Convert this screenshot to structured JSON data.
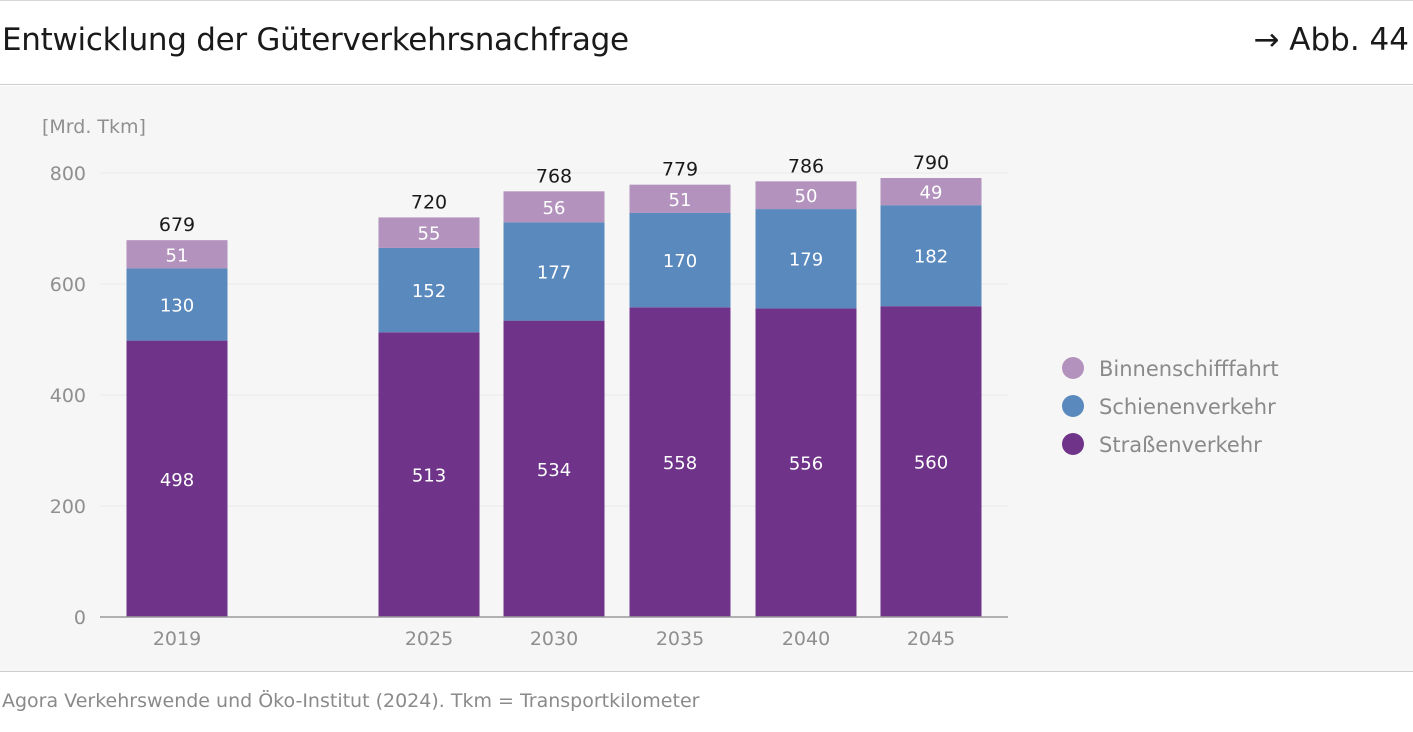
{
  "header": {
    "title": "Entwicklung der Güterverkehrsnachfrage",
    "figure_ref": "→ Abb. 44"
  },
  "source": "Agora Verkehrswende und Öko-Institut (2024). Tkm = Transportkilometer",
  "colors": {
    "strasse": "#6f3489",
    "schiene": "#5a89bd",
    "binnen": "#b393bd",
    "axis_text": "#8f8f8f",
    "total_text": "#1a1a1a",
    "segment_text": "#ffffff"
  },
  "chart_data": {
    "type": "bar",
    "stacked": true,
    "title": "Entwicklung der Güterverkehrsnachfrage",
    "ylabel": "[Mrd. Tkm]",
    "xlabel": "",
    "ylim": [
      0,
      800
    ],
    "yticks": [
      0,
      200,
      400,
      600,
      800
    ],
    "grid": true,
    "legend_position": "right",
    "categories": [
      "2019",
      "2025",
      "2030",
      "2035",
      "2040",
      "2045"
    ],
    "totals": [
      679,
      720,
      768,
      779,
      786,
      790
    ],
    "series": [
      {
        "name": "Straßenverkehr",
        "key": "strasse",
        "values": [
          498,
          513,
          534,
          558,
          556,
          560
        ]
      },
      {
        "name": "Schienenverkehr",
        "key": "schiene",
        "values": [
          130,
          152,
          177,
          170,
          179,
          182
        ]
      },
      {
        "name": "Binnenschifffahrt",
        "key": "binnen",
        "values": [
          51,
          55,
          56,
          51,
          50,
          49
        ]
      }
    ],
    "legend_order": [
      "Binnenschifffahrt",
      "Schienenverkehr",
      "Straßenverkehr"
    ]
  }
}
